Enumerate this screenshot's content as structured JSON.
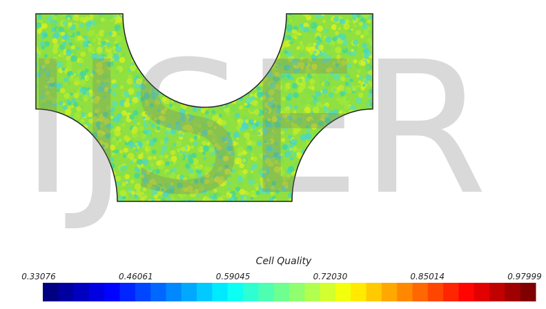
{
  "watermark": "IJSER",
  "colorbar": {
    "title": "Cell Quality",
    "labels": [
      "0.33076",
      "0.46061",
      "0.59045",
      "0.72030",
      "0.85014",
      "0.97999"
    ]
  }
}
